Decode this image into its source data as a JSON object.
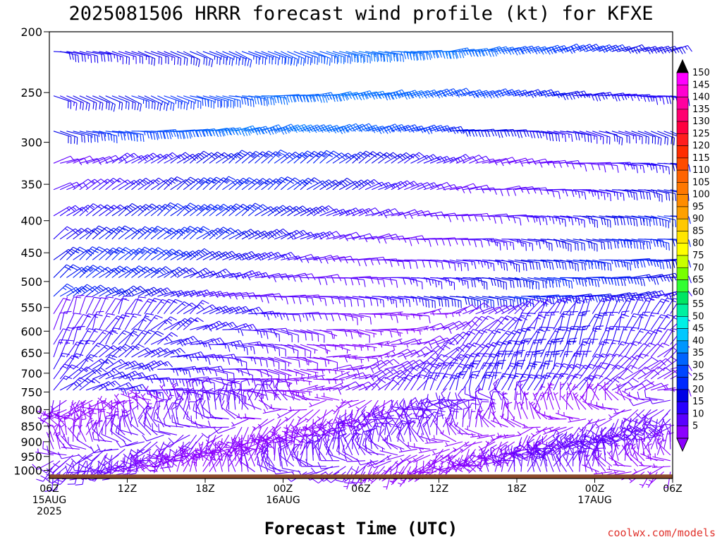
{
  "chart_data": {
    "type": "wind_barb_time_height",
    "title": "2025081506 HRRR forecast wind profile (kt) for KFXE",
    "xlabel": "Forecast Time (UTC)",
    "credit": "coolwx.com/models",
    "y_axis": {
      "label": "",
      "scale": "log-pressure",
      "inverted": true,
      "ticks": [
        "200",
        "250",
        "300",
        "350",
        "400",
        "450",
        "500",
        "550",
        "600",
        "650",
        "700",
        "750",
        "800",
        "850",
        "900",
        "950",
        "1000"
      ],
      "ylim_hpa": [
        200,
        1030
      ]
    },
    "x_axis": {
      "xlim_hours": [
        0,
        48
      ],
      "ticks": [
        {
          "hour": 0,
          "labels": [
            "06Z",
            "15AUG",
            "2025"
          ]
        },
        {
          "hour": 6,
          "labels": [
            "12Z"
          ]
        },
        {
          "hour": 12,
          "labels": [
            "18Z"
          ]
        },
        {
          "hour": 18,
          "labels": [
            "00Z",
            "16AUG"
          ]
        },
        {
          "hour": 24,
          "labels": [
            "06Z"
          ]
        },
        {
          "hour": 30,
          "labels": [
            "12Z"
          ]
        },
        {
          "hour": 36,
          "labels": [
            "18Z"
          ]
        },
        {
          "hour": 42,
          "labels": [
            "00Z",
            "17AUG"
          ]
        },
        {
          "hour": 48,
          "labels": [
            "06Z"
          ]
        }
      ]
    },
    "colorbar": {
      "units": "kt",
      "labels": [
        "150",
        "145",
        "140",
        "135",
        "130",
        "125",
        "120",
        "115",
        "110",
        "105",
        "100",
        "95",
        "90",
        "85",
        "80",
        "75",
        "70",
        "65",
        "60",
        "55",
        "50",
        "45",
        "40",
        "35",
        "30",
        "25",
        "20",
        "15",
        "10",
        "5"
      ],
      "colors": [
        "#ff00ff",
        "#ff00d0",
        "#ff00a0",
        "#ff0070",
        "#ff0040",
        "#ff1e1e",
        "#ff2d00",
        "#ff4b00",
        "#ff6400",
        "#ff7800",
        "#ff8c00",
        "#ffa000",
        "#ffc800",
        "#ffe600",
        "#ffff00",
        "#c8ff00",
        "#78ff00",
        "#32ff32",
        "#00e664",
        "#00f0a0",
        "#00f0e6",
        "#00c8ff",
        "#0096ff",
        "#0064ff",
        "#0046ff",
        "#0028ff",
        "#0000e6",
        "#2800ff",
        "#5a00ff",
        "#8c00ff"
      ]
    },
    "levels_hpa": [
      215,
      253,
      288,
      324,
      357,
      393,
      428,
      462,
      493,
      528,
      563,
      597,
      630,
      660,
      690,
      715,
      745,
      773,
      800,
      828,
      853,
      878,
      900,
      925,
      945,
      965,
      985,
      1005
    ],
    "time_step_hours": 0.5,
    "wind_regimes": [
      {
        "levels": "215-288 hPa",
        "speed_kt": [
          20,
          35
        ],
        "direction": "westerly (barbs pointing left, feathers down)",
        "color": "blue"
      },
      {
        "levels": "324-528 hPa",
        "speed_kt": [
          10,
          25
        ],
        "direction": "westerly",
        "color": "blue-violet"
      },
      {
        "levels": "563-745 hPa",
        "speed_kt": [
          5,
          15
        ],
        "direction": "south-westerly/westerly",
        "color": "violet-blue"
      },
      {
        "levels": "773-1005 hPa",
        "speed_kt": [
          5,
          10
        ],
        "direction": "variable, easterly near surface",
        "color": "violet"
      }
    ],
    "terrain": {
      "surface_pressure_hpa": 1015,
      "color": "#8b4a2b"
    }
  }
}
